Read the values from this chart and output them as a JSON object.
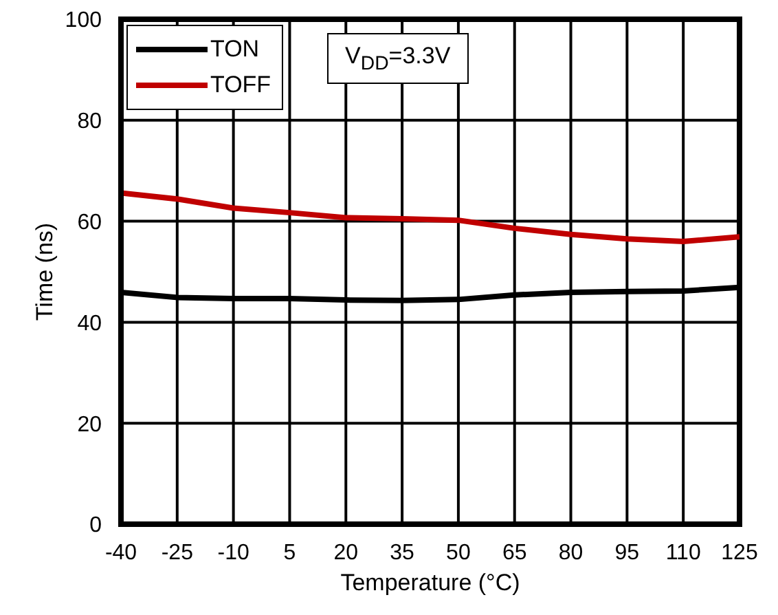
{
  "chart_data": {
    "type": "line",
    "xlabel": "Temperature (°C)",
    "ylabel": "Time (ns)",
    "x": [
      -40,
      -25,
      -10,
      5,
      20,
      35,
      50,
      65,
      80,
      95,
      110,
      125
    ],
    "xlim": [
      -40,
      125
    ],
    "xticks": [
      -40,
      -25,
      -10,
      5,
      20,
      35,
      50,
      65,
      80,
      95,
      110,
      125
    ],
    "ylim": [
      0,
      100
    ],
    "yticks": [
      0,
      20,
      40,
      60,
      80,
      100
    ],
    "grid": true,
    "legend": "top left",
    "marker": "none",
    "line_style": "solid",
    "annotations": [
      "V$_{DD}$=3.3V"
    ],
    "series": [
      {
        "name": "TON",
        "color": "#000000",
        "values": [
          45.9,
          44.9,
          44.7,
          44.7,
          44.4,
          44.3,
          44.5,
          45.4,
          45.9,
          46.1,
          46.2,
          46.9
        ]
      },
      {
        "name": "TOFF",
        "color": "#c00000",
        "values": [
          65.6,
          64.4,
          62.6,
          61.7,
          60.7,
          60.5,
          60.2,
          58.6,
          57.4,
          56.5,
          56.0,
          56.9
        ]
      }
    ]
  }
}
